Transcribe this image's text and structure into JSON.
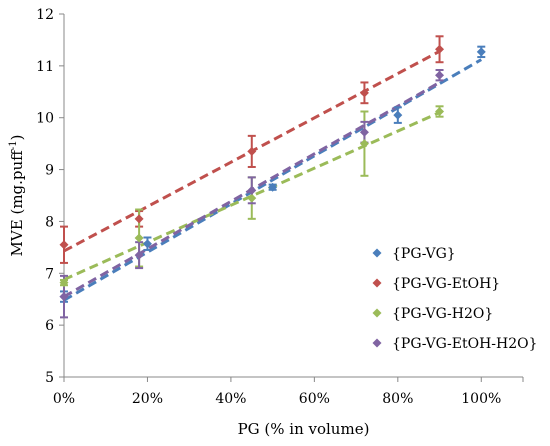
{
  "chart_data": {
    "type": "scatter",
    "xlabel": "PG (% in volume)",
    "ylabel": "MVE (mg.puff",
    "ylabel_superscript": "-1",
    "ylabel_suffix": ")",
    "xlim": [
      0,
      1.1
    ],
    "ylim": [
      5,
      12
    ],
    "x_ticks": [
      0,
      0.2,
      0.4,
      0.6,
      0.8,
      1.0
    ],
    "x_tick_labels": [
      "0%",
      "20%",
      "40%",
      "60%",
      "80%",
      "100%"
    ],
    "y_ticks": [
      5,
      6,
      7,
      8,
      9,
      10,
      11,
      12
    ],
    "y_tick_labels": [
      "5",
      "6",
      "7",
      "8",
      "9",
      "10",
      "11",
      "12"
    ],
    "grid": false,
    "legend_position": "bottom-right",
    "marker": "diamond",
    "trendline": "linear dashed",
    "series": [
      {
        "name": "{PG-VG}",
        "color": "#4A7EBB",
        "points": [
          {
            "x": 0.0,
            "y": 6.55,
            "err": 0.1
          },
          {
            "x": 0.2,
            "y": 7.57,
            "err": 0.12
          },
          {
            "x": 0.5,
            "y": 8.66,
            "err": 0.05
          },
          {
            "x": 0.8,
            "y": 10.05,
            "err": 0.15
          },
          {
            "x": 1.0,
            "y": 11.27,
            "err": 0.1
          }
        ],
        "trend": [
          6.48,
          11.12
        ]
      },
      {
        "name": "{PG-VG-EtOH}",
        "color": "#C0504D",
        "points": [
          {
            "x": 0.0,
            "y": 7.55,
            "err": 0.35
          },
          {
            "x": 0.18,
            "y": 8.05,
            "err": 0.15
          },
          {
            "x": 0.45,
            "y": 9.35,
            "err": 0.3
          },
          {
            "x": 0.72,
            "y": 10.48,
            "err": 0.2
          },
          {
            "x": 0.9,
            "y": 11.32,
            "err": 0.25
          }
        ],
        "trend": [
          7.43,
          11.28
        ]
      },
      {
        "name": "{PG-VG-H2O}",
        "color": "#9BBB59",
        "points": [
          {
            "x": 0.0,
            "y": 6.82,
            "err": 0.05
          },
          {
            "x": 0.18,
            "y": 7.68,
            "err": 0.55
          },
          {
            "x": 0.45,
            "y": 8.45,
            "err": 0.4
          },
          {
            "x": 0.72,
            "y": 9.5,
            "err": 0.62
          },
          {
            "x": 0.9,
            "y": 10.12,
            "err": 0.1
          }
        ],
        "trend": [
          6.88,
          10.1
        ]
      },
      {
        "name": "{PG-VG-EtOH-H2O}",
        "color": "#8064A2",
        "points": [
          {
            "x": 0.0,
            "y": 6.55,
            "err": 0.4
          },
          {
            "x": 0.18,
            "y": 7.35,
            "err": 0.25
          },
          {
            "x": 0.45,
            "y": 8.6,
            "err": 0.25
          },
          {
            "x": 0.72,
            "y": 9.72,
            "err": 0.2
          },
          {
            "x": 0.9,
            "y": 10.82,
            "err": 0.1
          }
        ],
        "trend": [
          6.55,
          10.68
        ]
      }
    ]
  }
}
